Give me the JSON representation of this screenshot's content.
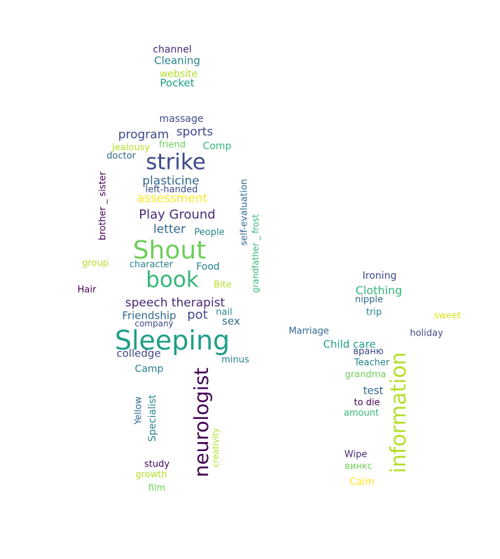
{
  "words": [
    {
      "text": "channel",
      "color": "#482878"
    },
    {
      "text": "Cleaning",
      "color": "#26828e"
    },
    {
      "text": "website",
      "color": "#b5de2b"
    },
    {
      "text": "Pocket",
      "color": "#1f9e89"
    },
    {
      "text": "massage",
      "color": "#3e4989"
    },
    {
      "text": "sports",
      "color": "#3e4989"
    },
    {
      "text": "program",
      "color": "#3e4989"
    },
    {
      "text": "Jealousy",
      "color": "#b5de2b"
    },
    {
      "text": "friend",
      "color": "#6ece58"
    },
    {
      "text": "Comp",
      "color": "#35b779"
    },
    {
      "text": "doctor",
      "color": "#31688e"
    },
    {
      "text": "strike",
      "color": "#3e4989"
    },
    {
      "text": "plasticine",
      "color": "#31688e"
    },
    {
      "text": "left-handed",
      "color": "#3e4989"
    },
    {
      "text": "assessment",
      "color": "#fde725"
    },
    {
      "text": "Play Ground",
      "color": "#482878"
    },
    {
      "text": "letter",
      "color": "#31688e"
    },
    {
      "text": "People",
      "color": "#26828e"
    },
    {
      "text": "Shout",
      "color": "#6ece58"
    },
    {
      "text": "group",
      "color": "#b5de2b"
    },
    {
      "text": "character",
      "color": "#26828e"
    },
    {
      "text": "Food",
      "color": "#26828e"
    },
    {
      "text": "book",
      "color": "#35b779"
    },
    {
      "text": "Bite",
      "color": "#b5de2b"
    },
    {
      "text": "Hair",
      "color": "#440154"
    },
    {
      "text": "speech therapist",
      "color": "#482878"
    },
    {
      "text": "Friendship",
      "color": "#31688e"
    },
    {
      "text": "pot",
      "color": "#3e4989"
    },
    {
      "text": "nail",
      "color": "#26828e"
    },
    {
      "text": "company",
      "color": "#3e4989"
    },
    {
      "text": "sex",
      "color": "#31688e"
    },
    {
      "text": "Sleeping",
      "color": "#1f9e89"
    },
    {
      "text": "colledge",
      "color": "#3e4989"
    },
    {
      "text": "minus",
      "color": "#26828e"
    },
    {
      "text": "Camp",
      "color": "#26828e"
    },
    {
      "text": "study",
      "color": "#440154"
    },
    {
      "text": "growth",
      "color": "#b5de2b"
    },
    {
      "text": "film",
      "color": "#6ece58"
    },
    {
      "text": "brother _ sister",
      "color": "#440154"
    },
    {
      "text": "self-evaluation",
      "color": "#31688e"
    },
    {
      "text": "grandfather _ frost",
      "color": "#35b779"
    },
    {
      "text": "neurologist",
      "color": "#440154"
    },
    {
      "text": "Yellow",
      "color": "#31688e"
    },
    {
      "text": "Specialist",
      "color": "#26828e"
    },
    {
      "text": "creativity",
      "color": "#b5de2b"
    },
    {
      "text": "Ironing",
      "color": "#3e4989"
    },
    {
      "text": "Clothing",
      "color": "#35b779"
    },
    {
      "text": "nipple",
      "color": "#31688e"
    },
    {
      "text": "trip",
      "color": "#26828e"
    },
    {
      "text": "sweet",
      "color": "#d8e219"
    },
    {
      "text": "Marriage",
      "color": "#31688e"
    },
    {
      "text": "holiday",
      "color": "#3e4989"
    },
    {
      "text": "Child care",
      "color": "#1f9e89"
    },
    {
      "text": "враню",
      "color": "#3e4989"
    },
    {
      "text": "Teacher",
      "color": "#26828e"
    },
    {
      "text": "grandma",
      "color": "#6ece58"
    },
    {
      "text": "test",
      "color": "#31688e"
    },
    {
      "text": "to die",
      "color": "#440154"
    },
    {
      "text": "amount",
      "color": "#35b779"
    },
    {
      "text": "information",
      "color": "#b5de2b"
    },
    {
      "text": "Wipe",
      "color": "#482878"
    },
    {
      "text": "винкс",
      "color": "#6ece58"
    },
    {
      "text": "Calm",
      "color": "#fde725"
    }
  ]
}
